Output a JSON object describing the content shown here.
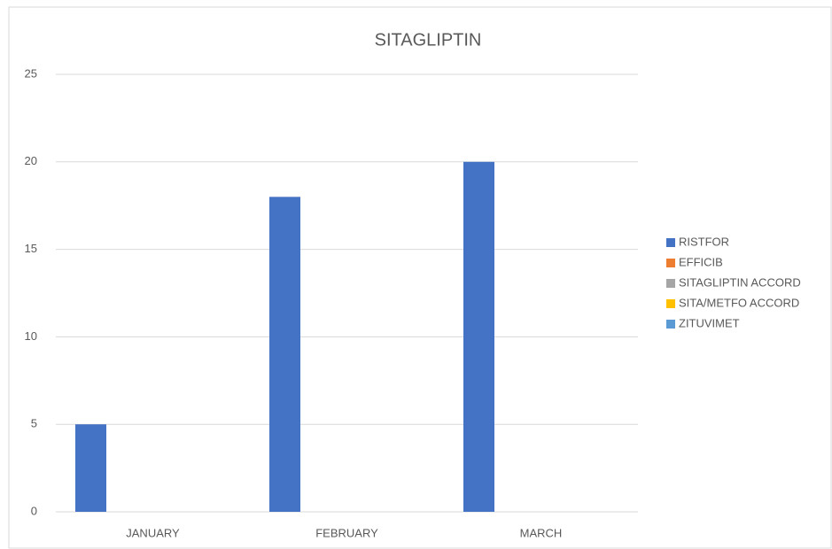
{
  "chart_data": {
    "type": "bar",
    "title": "SITAGLIPTIN",
    "categories": [
      "JANUARY",
      "FEBRUARY",
      "MARCH"
    ],
    "series": [
      {
        "name": "RISTFOR",
        "color": "#4472c4",
        "values": [
          5,
          18,
          20
        ]
      },
      {
        "name": "EFFICIB",
        "color": "#ed7d31",
        "values": [
          0,
          0,
          0
        ]
      },
      {
        "name": "SITAGLIPTIN ACCORD",
        "color": "#a5a5a5",
        "values": [
          0,
          0,
          0
        ]
      },
      {
        "name": "SITA/METFO ACCORD",
        "color": "#ffc000",
        "values": [
          0,
          0,
          0
        ]
      },
      {
        "name": "ZITUVIMET",
        "color": "#5b9bd5",
        "values": [
          0,
          0,
          0
        ]
      }
    ],
    "ylim": [
      0,
      25
    ],
    "yticks": [
      0,
      5,
      10,
      15,
      20,
      25
    ],
    "grid": true,
    "legend": "right"
  }
}
